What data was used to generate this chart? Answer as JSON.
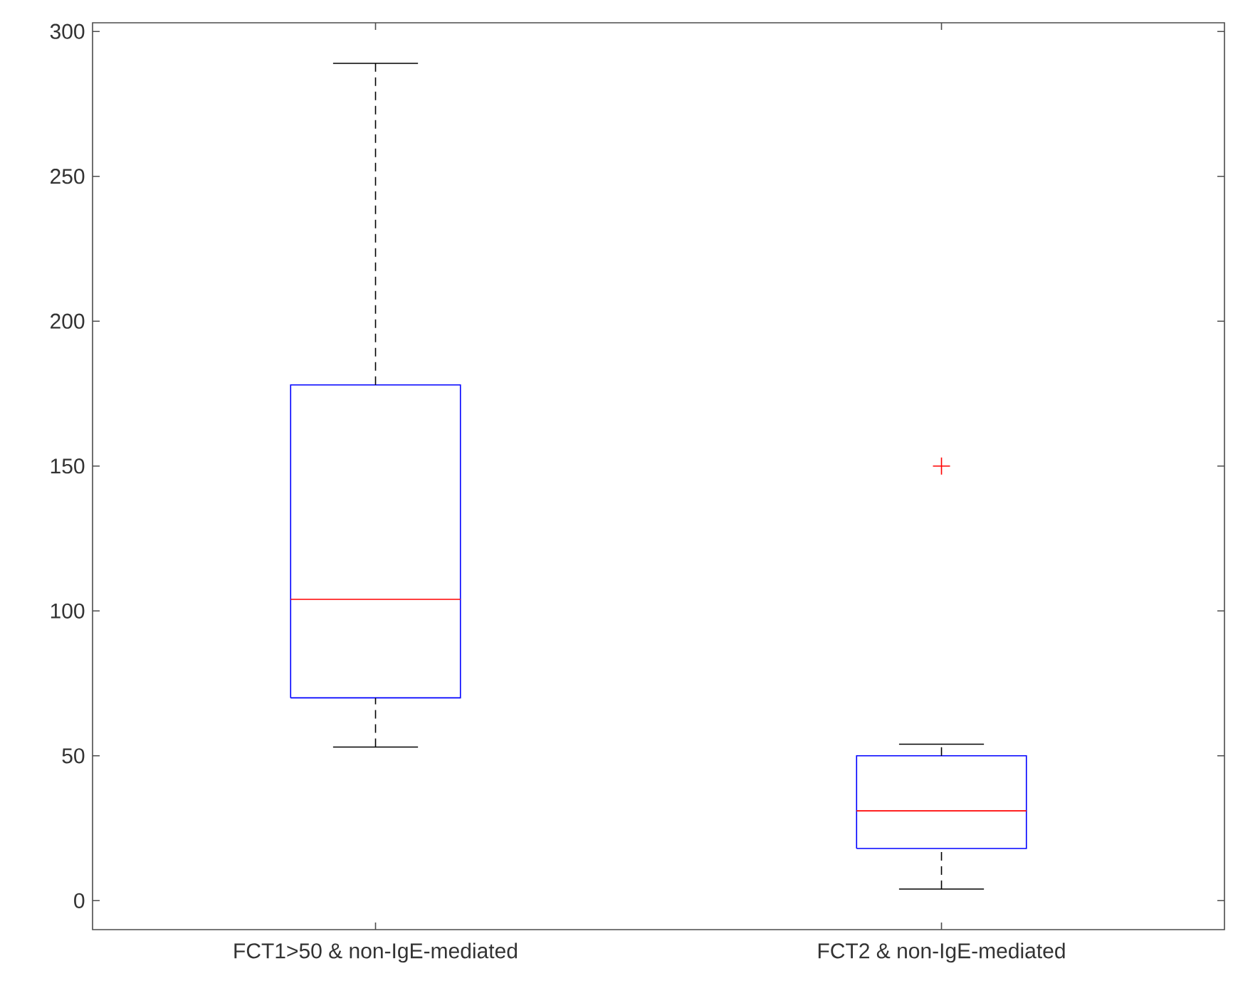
{
  "chart_data": {
    "type": "box",
    "categories": [
      "FCT1>50 & non-IgE-mediated",
      "FCT2 & non-IgE-mediated"
    ],
    "boxes": [
      {
        "low": 53,
        "q1": 70,
        "median": 104,
        "q3": 178,
        "high": 289
      },
      {
        "low": 4,
        "q1": 18,
        "median": 31,
        "q3": 50,
        "high": 54,
        "outliers": [
          150
        ]
      }
    ],
    "ylim": [
      -10,
      303
    ],
    "yticks": [
      0,
      50,
      100,
      150,
      200,
      250,
      300
    ],
    "grid": false
  }
}
